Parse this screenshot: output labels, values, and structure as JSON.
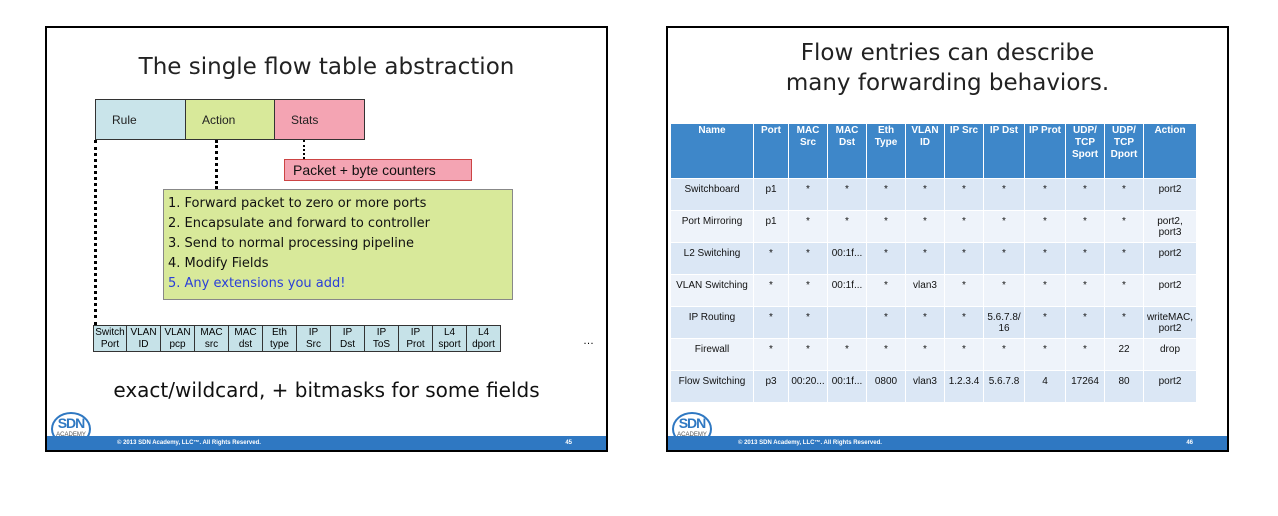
{
  "slide1": {
    "title": "The single flow table abstraction",
    "header_boxes": {
      "rule": "Rule",
      "action": "Action",
      "stats": "Stats"
    },
    "counters": "Packet + byte counters",
    "actions": [
      "1. Forward packet to zero or more ports",
      "2. Encapsulate and forward to controller",
      "3. Send to normal processing pipeline",
      "4. Modify Fields",
      "5. Any extensions you add!"
    ],
    "fields": [
      [
        "Switch",
        "Port"
      ],
      [
        "VLAN",
        "ID"
      ],
      [
        "VLAN",
        "pcp"
      ],
      [
        "MAC",
        "src"
      ],
      [
        "MAC",
        "dst"
      ],
      [
        "Eth",
        "type"
      ],
      [
        "IP",
        "Src"
      ],
      [
        "IP",
        "Dst"
      ],
      [
        "IP",
        "ToS"
      ],
      [
        "IP",
        "Prot"
      ],
      [
        "L4",
        "sport"
      ],
      [
        "L4",
        "dport"
      ]
    ],
    "ellipsis": "…",
    "note": "exact/wildcard, + bitmasks for some fields",
    "footer": "© 2013 SDN Academy, LLC™. All Rights Reserved.",
    "page_number": "45",
    "logo": {
      "text": "SDN",
      "sub": "ACADEMY"
    }
  },
  "slide2": {
    "title_line1": "Flow entries can describe",
    "title_line2": "many forwarding behaviors.",
    "columns": [
      "Name",
      "Port",
      "MAC Src",
      "MAC Dst",
      "Eth Type",
      "VLAN ID",
      "IP Src",
      "IP Dst",
      "IP Prot",
      "UDP/ TCP Sport",
      "UDP/ TCP Dport",
      "Action"
    ],
    "rows": [
      [
        "Switchboard",
        "p1",
        "*",
        "*",
        "*",
        "*",
        "*",
        "*",
        "*",
        "*",
        "*",
        "port2"
      ],
      [
        "Port Mirroring",
        "p1",
        "*",
        "*",
        "*",
        "*",
        "*",
        "*",
        "*",
        "*",
        "*",
        "port2, port3"
      ],
      [
        "L2 Switching",
        "*",
        "*",
        "00:1f...",
        "*",
        "*",
        "*",
        "*",
        "*",
        "*",
        "*",
        "port2"
      ],
      [
        "VLAN Switching",
        "*",
        "*",
        "00:1f...",
        "*",
        "vlan3",
        "*",
        "*",
        "*",
        "*",
        "*",
        "port2"
      ],
      [
        "IP Routing",
        "*",
        "*",
        "",
        "*",
        "*",
        "*",
        "5.6.7.8/ 16",
        "*",
        "*",
        "*",
        "writeMAC, port2"
      ],
      [
        "Firewall",
        "*",
        "*",
        "*",
        "*",
        "*",
        "*",
        "*",
        "*",
        "*",
        "22",
        "drop"
      ],
      [
        "Flow Switching",
        "p3",
        "00:20...",
        "00:1f...",
        "0800",
        "vlan3",
        "1.2.3.4",
        "5.6.7.8",
        "4",
        "17264",
        "80",
        "port2"
      ]
    ],
    "footer": "© 2013 SDN Academy, LLC™. All Rights Reserved.",
    "page_number": "46",
    "logo": {
      "text": "SDN",
      "sub": "ACADEMY"
    }
  },
  "colors": {
    "rule_box": "#c9e4ea",
    "action_box": "#d8e99a",
    "stats_box": "#f4a4b3",
    "table_header": "#3e87c9",
    "footer_bar": "#2f78c2",
    "extension_text": "#2a3fd8"
  }
}
